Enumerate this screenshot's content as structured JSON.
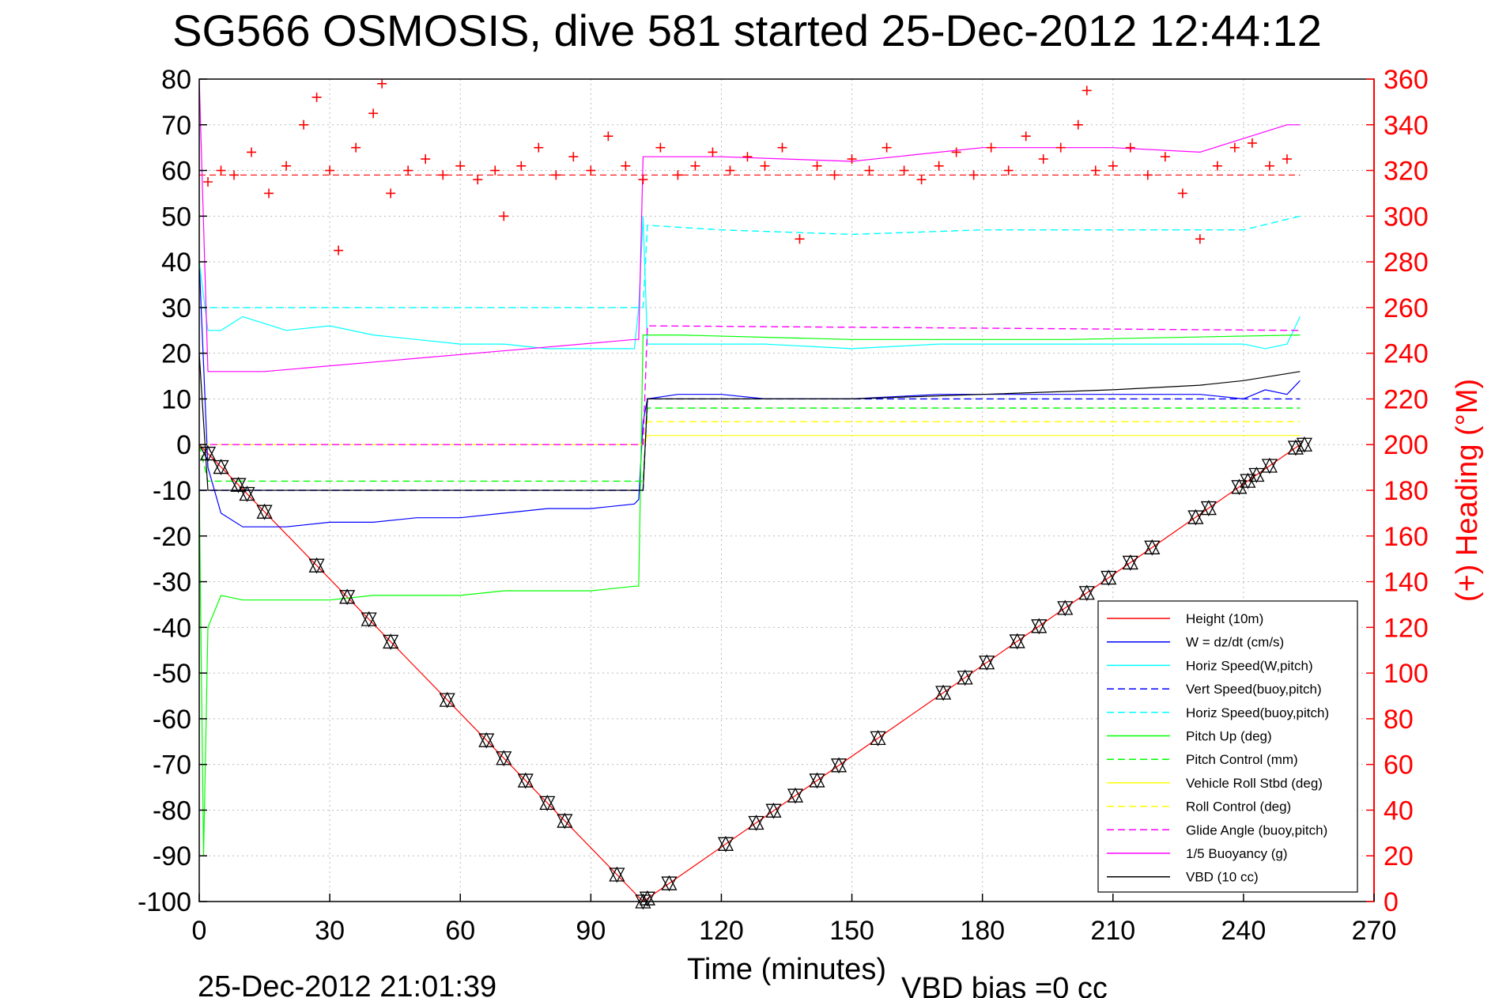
{
  "chart_data": {
    "type": "line",
    "title": "SG566 OSMOSIS, dive 581 started 25-Dec-2012 12:44:12",
    "xlabel": "Time (minutes)",
    "ylabel": "",
    "y2label": "(+) Heading (°M)",
    "xlim": [
      0,
      270
    ],
    "ylim": [
      -100,
      80
    ],
    "y2lim": [
      0,
      360
    ],
    "xticks": [
      "0",
      "30",
      "60",
      "90",
      "120",
      "150",
      "180",
      "210",
      "240",
      "270"
    ],
    "yticks": [
      "80",
      "70",
      "60",
      "50",
      "40",
      "30",
      "20",
      "10",
      "0",
      "-10",
      "-20",
      "-30",
      "-40",
      "-50",
      "-60",
      "-70",
      "-80",
      "-90",
      "-100"
    ],
    "y2ticks": [
      "360",
      "340",
      "320",
      "300",
      "280",
      "260",
      "240",
      "220",
      "200",
      "180",
      "160",
      "140",
      "120",
      "100",
      "80",
      "60",
      "40",
      "20",
      "0"
    ],
    "grid": true,
    "legend_position": "bottom-right",
    "colors": {
      "height": "#ff0000",
      "w": "#0000ff",
      "horiz_w": "#00ffff",
      "vert_buoy": "#0000ff",
      "horiz_buoy": "#00ffff",
      "pitch": "#00ff00",
      "pitch_ctrl": "#00ff00",
      "roll": "#ffff00",
      "roll_ctrl": "#ffff00",
      "glide": "#ff00ff",
      "buoy": "#ff00ff",
      "vbd": "#000000",
      "heading": "#ff0000"
    },
    "series": [
      {
        "name": "Height (10m)",
        "style": "solid",
        "color": "#ff0000",
        "x": [
          0,
          102,
          253
        ],
        "y": [
          0,
          -100,
          0
        ]
      },
      {
        "name": "W = dz/dt (cm/s)",
        "style": "solid",
        "color": "#0000ff",
        "x": [
          0,
          2,
          5,
          10,
          20,
          30,
          40,
          50,
          60,
          70,
          80,
          90,
          100,
          101,
          102,
          103,
          110,
          120,
          130,
          150,
          170,
          190,
          210,
          230,
          240,
          245,
          250,
          253
        ],
        "y": [
          40,
          -5,
          -15,
          -18,
          -18,
          -17,
          -17,
          -16,
          -16,
          -15,
          -14,
          -14,
          -13,
          -12,
          5,
          10,
          11,
          11,
          10,
          10,
          11,
          11,
          11,
          11,
          10,
          12,
          11,
          14
        ]
      },
      {
        "name": "Horiz Speed(W,pitch)",
        "style": "solid",
        "color": "#00ffff",
        "x": [
          0,
          2,
          5,
          10,
          20,
          30,
          40,
          50,
          60,
          70,
          80,
          90,
          100,
          101,
          102,
          103,
          110,
          120,
          130,
          150,
          170,
          190,
          210,
          230,
          240,
          245,
          250,
          253
        ],
        "y": [
          40,
          25,
          25,
          28,
          25,
          26,
          24,
          23,
          22,
          22,
          21,
          21,
          21,
          30,
          50,
          22,
          22,
          22,
          22,
          21,
          22,
          22,
          22,
          22,
          22,
          21,
          22,
          28
        ]
      },
      {
        "name": "Vert Speed(buoy,pitch)",
        "style": "dash",
        "color": "#0000ff",
        "x": [
          0,
          102,
          103,
          253
        ],
        "y": [
          -10,
          -10,
          10,
          10
        ]
      },
      {
        "name": "Horiz Speed(buoy,pitch)",
        "style": "dash",
        "color": "#00ffff",
        "x": [
          0,
          102,
          103,
          120,
          150,
          180,
          210,
          240,
          253
        ],
        "y": [
          30,
          30,
          48,
          47,
          46,
          47,
          47,
          47,
          50
        ]
      },
      {
        "name": "Pitch Up (deg)",
        "style": "solid",
        "color": "#00ff00",
        "x": [
          0,
          1,
          2,
          5,
          10,
          20,
          30,
          40,
          50,
          60,
          70,
          80,
          90,
          100,
          101,
          102,
          103,
          110,
          150,
          200,
          253
        ],
        "y": [
          -10,
          -90,
          -40,
          -33,
          -34,
          -34,
          -34,
          -33,
          -33,
          -33,
          -32,
          -32,
          -32,
          -31,
          -31,
          24,
          24,
          24,
          23,
          23,
          24
        ]
      },
      {
        "name": "Pitch Control (mm)",
        "style": "dash",
        "color": "#00ff00",
        "x": [
          0,
          2,
          101,
          102,
          103,
          253
        ],
        "y": [
          0,
          -8,
          -8,
          -8,
          8,
          8
        ]
      },
      {
        "name": "Vehicle Roll Stbd (deg)",
        "style": "solid",
        "color": "#ffff00",
        "x": [
          0,
          102,
          103,
          253
        ],
        "y": [
          0,
          0,
          2,
          2
        ]
      },
      {
        "name": "Roll Control (deg)",
        "style": "dash",
        "color": "#ffff00",
        "x": [
          0,
          102,
          103,
          253
        ],
        "y": [
          0,
          0,
          5,
          5
        ]
      },
      {
        "name": "Glide Angle (buoy,pitch)",
        "style": "dash",
        "color": "#ff00ff",
        "x": [
          0,
          102,
          103,
          253
        ],
        "y": [
          0,
          0,
          26,
          25
        ]
      },
      {
        "name": "1/5 Buoyancy (g)",
        "style": "solid",
        "color": "#ff00ff",
        "x": [
          0,
          2,
          15,
          100,
          101,
          102,
          120,
          150,
          180,
          210,
          230,
          250,
          253
        ],
        "y": [
          80,
          16,
          16,
          23,
          23,
          63,
          63,
          62,
          65,
          65,
          64,
          70,
          70
        ]
      },
      {
        "name": "VBD (10 cc)",
        "style": "solid",
        "color": "#000000",
        "x": [
          0,
          2,
          101,
          102,
          103,
          150,
          180,
          210,
          230,
          240,
          253
        ],
        "y": [
          20,
          -10,
          -10,
          -10,
          10,
          10,
          11,
          12,
          13,
          14,
          16
        ]
      }
    ],
    "heading_points": [
      [
        2,
        315
      ],
      [
        5,
        320
      ],
      [
        8,
        318
      ],
      [
        12,
        328
      ],
      [
        16,
        310
      ],
      [
        20,
        322
      ],
      [
        24,
        340
      ],
      [
        27,
        352
      ],
      [
        30,
        320
      ],
      [
        32,
        285
      ],
      [
        36,
        330
      ],
      [
        40,
        345
      ],
      [
        42,
        358
      ],
      [
        44,
        310
      ],
      [
        48,
        320
      ],
      [
        52,
        325
      ],
      [
        56,
        318
      ],
      [
        60,
        322
      ],
      [
        64,
        316
      ],
      [
        68,
        320
      ],
      [
        70,
        300
      ],
      [
        74,
        322
      ],
      [
        78,
        330
      ],
      [
        82,
        318
      ],
      [
        86,
        326
      ],
      [
        90,
        320
      ],
      [
        94,
        335
      ],
      [
        98,
        322
      ],
      [
        102,
        316
      ],
      [
        106,
        330
      ],
      [
        110,
        318
      ],
      [
        114,
        322
      ],
      [
        118,
        328
      ],
      [
        122,
        320
      ],
      [
        126,
        326
      ],
      [
        130,
        322
      ],
      [
        134,
        330
      ],
      [
        138,
        290
      ],
      [
        142,
        322
      ],
      [
        146,
        318
      ],
      [
        150,
        325
      ],
      [
        154,
        320
      ],
      [
        158,
        330
      ],
      [
        162,
        320
      ],
      [
        166,
        316
      ],
      [
        170,
        322
      ],
      [
        174,
        328
      ],
      [
        178,
        318
      ],
      [
        182,
        330
      ],
      [
        186,
        320
      ],
      [
        190,
        335
      ],
      [
        194,
        325
      ],
      [
        198,
        330
      ],
      [
        202,
        340
      ],
      [
        204,
        355
      ],
      [
        206,
        320
      ],
      [
        210,
        322
      ],
      [
        214,
        330
      ],
      [
        218,
        318
      ],
      [
        222,
        326
      ],
      [
        226,
        310
      ],
      [
        230,
        290
      ],
      [
        234,
        322
      ],
      [
        238,
        330
      ],
      [
        242,
        332
      ],
      [
        246,
        322
      ],
      [
        250,
        325
      ]
    ],
    "heading_mean": 318,
    "triangle_markers_x": [
      2,
      5,
      9,
      11,
      15,
      27,
      34,
      39,
      44,
      57,
      66,
      70,
      75,
      80,
      84,
      96,
      102,
      103,
      108,
      121,
      128,
      132,
      137,
      142,
      147,
      156,
      171,
      176,
      181,
      188,
      193,
      199,
      204,
      209,
      214,
      219,
      229,
      232,
      239,
      241,
      243,
      246,
      252,
      254
    ]
  },
  "footer": {
    "timestamp": "25-Dec-2012 21:01:39",
    "vbd_bias": "VBD bias =0 cc"
  }
}
